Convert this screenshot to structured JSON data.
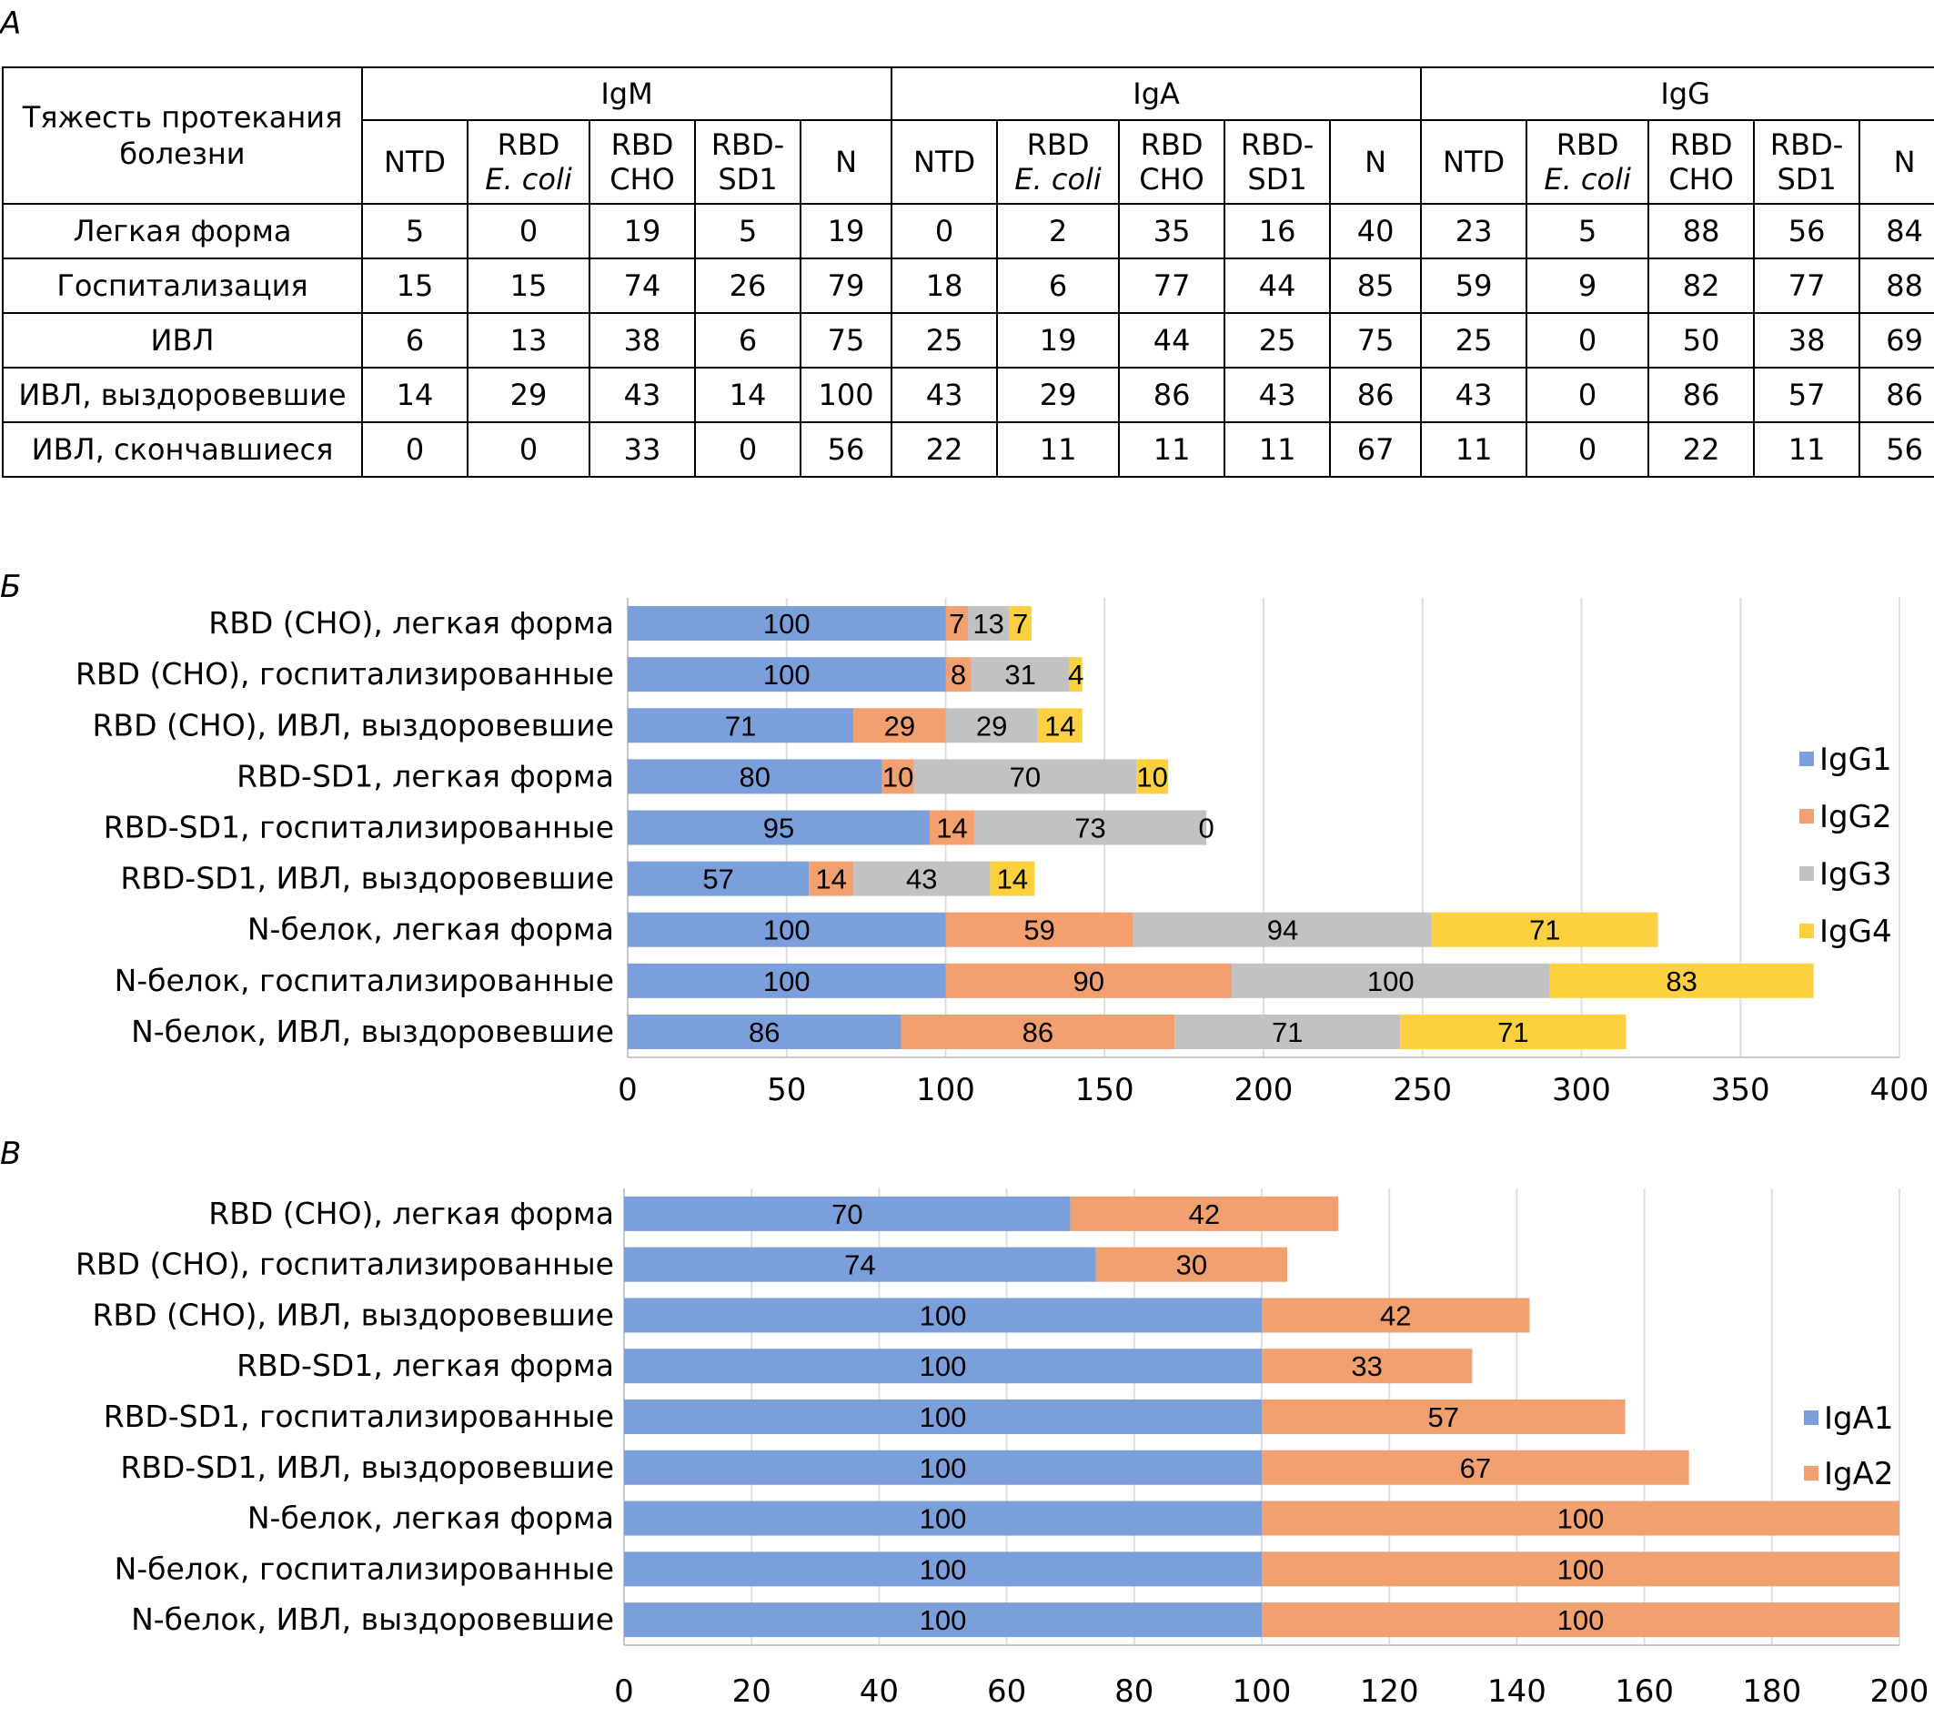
{
  "panel_letters": {
    "a": "А",
    "b": "Б",
    "c": "В"
  },
  "table": {
    "stub_header": "Тяжесть протекания болезни",
    "groups": [
      "IgM",
      "IgA",
      "IgG"
    ],
    "antigens": [
      {
        "line1": "NTD",
        "line2": "",
        "italic2": false
      },
      {
        "line1": "RBD",
        "line2": "E. coli",
        "italic2": true
      },
      {
        "line1": "RBD",
        "line2": "CHO",
        "italic2": false
      },
      {
        "line1": "RBD-",
        "line2": "SD1",
        "italic2": false
      },
      {
        "line1": "N",
        "line2": "",
        "italic2": false
      }
    ],
    "rows": [
      {
        "label": "Легкая форма",
        "values": [
          "5",
          "0",
          "19",
          "5",
          "19",
          "0",
          "2",
          "35",
          "16",
          "40",
          "23",
          "5",
          "88",
          "56",
          "84"
        ]
      },
      {
        "label": "Госпитализация",
        "values": [
          "15",
          "15",
          "74",
          "26",
          "79",
          "18",
          "6",
          "77",
          "44",
          "85",
          "59",
          "9",
          "82",
          "77",
          "88"
        ]
      },
      {
        "label": "ИВЛ",
        "values": [
          "6",
          "13",
          "38",
          "6",
          "75",
          "25",
          "19",
          "44",
          "25",
          "75",
          "25",
          "0",
          "50",
          "38",
          "69"
        ]
      },
      {
        "label": "ИВЛ, выздоровевшие",
        "values": [
          "14",
          "29",
          "43",
          "14",
          "100",
          "43",
          "29",
          "86",
          "43",
          "86",
          "43",
          "0",
          "86",
          "57",
          "86"
        ]
      },
      {
        "label": "ИВЛ, скончавшиеся",
        "values": [
          "0",
          "0",
          "33",
          "0",
          "56",
          "22",
          "11",
          "11",
          "11",
          "67",
          "11",
          "0",
          "22",
          "11",
          "56"
        ]
      }
    ]
  },
  "chart_data": [
    {
      "type": "bar",
      "orientation": "horizontal",
      "stacked": true,
      "categories": [
        "RBD (CHO), легкая форма",
        "RBD (CHO), госпитализированные",
        "RBD (CHO), ИВЛ, выздоровевшие",
        "RBD-SD1, легкая форма",
        "RBD-SD1, госпитализированные",
        "RBD-SD1, ИВЛ, выздоровевшие",
        "N-белок, легкая форма",
        "N-белок, госпитализированные",
        "N-белок, ИВЛ, выздоровевшие"
      ],
      "series": [
        {
          "name": "IgG1",
          "color": "#7b9fdb",
          "values": [
            100,
            100,
            71,
            80,
            95,
            57,
            100,
            100,
            86
          ]
        },
        {
          "name": "IgG2",
          "color": "#f2a06f",
          "values": [
            7,
            8,
            29,
            10,
            14,
            14,
            59,
            90,
            86
          ]
        },
        {
          "name": "IgG3",
          "color": "#c2c2c2",
          "values": [
            13,
            31,
            29,
            70,
            73,
            43,
            94,
            100,
            71
          ]
        },
        {
          "name": "IgG4",
          "color": "#fdd040",
          "values": [
            7,
            4,
            14,
            10,
            0,
            14,
            71,
            83,
            71
          ]
        }
      ],
      "xlim": [
        0,
        400
      ],
      "xticks": [
        0,
        50,
        100,
        150,
        200,
        250,
        300,
        350,
        400
      ],
      "grid": true,
      "legend_position": "right"
    },
    {
      "type": "bar",
      "orientation": "horizontal",
      "stacked": true,
      "categories": [
        "RBD (CHO), легкая форма",
        "RBD (CHO), госпитализированные",
        "RBD (CHO), ИВЛ, выздоровевшие",
        "RBD-SD1, легкая форма",
        "RBD-SD1, госпитализированные",
        "RBD-SD1, ИВЛ, выздоровевшие",
        "N-белок, легкая форма",
        "N-белок, госпитализированные",
        "N-белок, ИВЛ, выздоровевшие"
      ],
      "series": [
        {
          "name": "IgA1",
          "color": "#7b9fdb",
          "values": [
            70,
            74,
            100,
            100,
            100,
            100,
            100,
            100,
            100
          ]
        },
        {
          "name": "IgA2",
          "color": "#f2a06f",
          "values": [
            42,
            30,
            42,
            33,
            57,
            67,
            100,
            100,
            100
          ]
        }
      ],
      "xlim": [
        0,
        200
      ],
      "xticks": [
        0,
        20,
        40,
        60,
        80,
        100,
        120,
        140,
        160,
        180,
        200
      ],
      "grid": true,
      "legend_position": "right"
    }
  ]
}
